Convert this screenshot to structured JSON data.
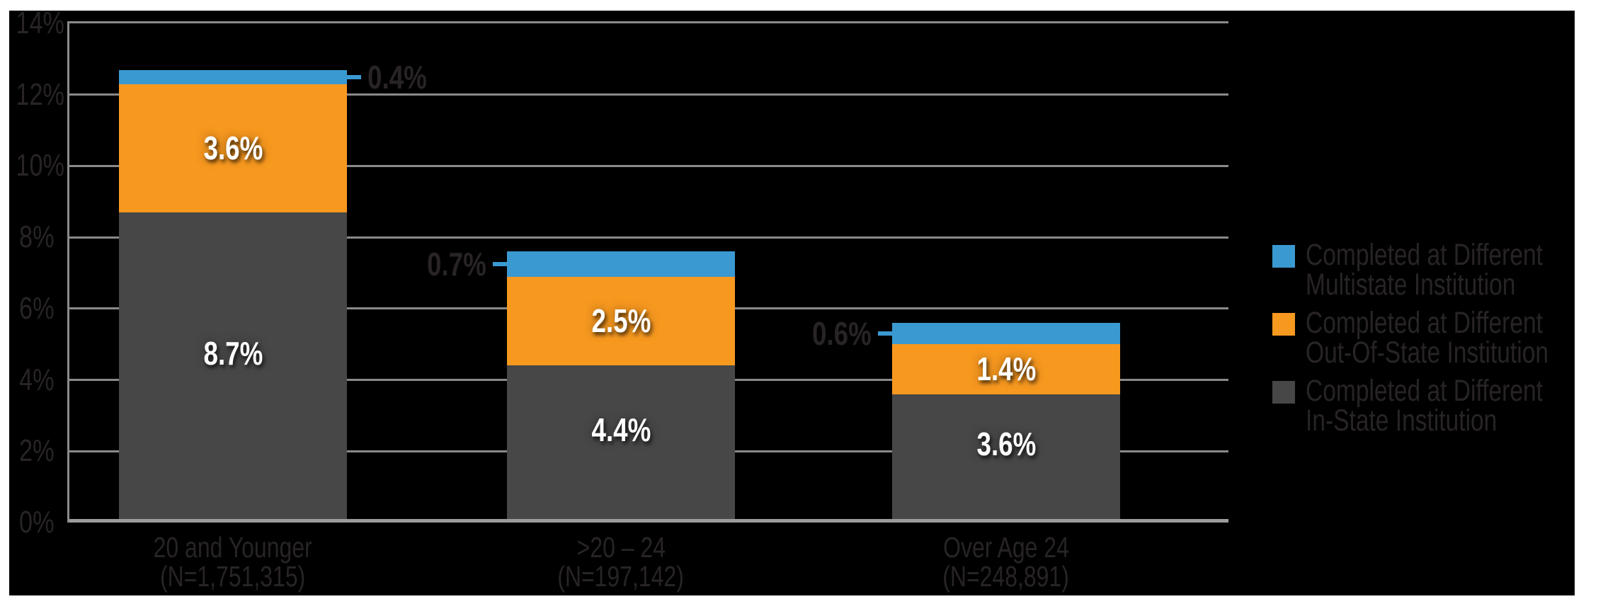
{
  "chart_data": {
    "type": "bar",
    "variant": "stacked-column",
    "title": "",
    "categories": [
      {
        "label": "20 and Younger",
        "n_label": "(N=1,751,315)"
      },
      {
        "label": ">20 – 24",
        "n_label": "(N=197,142)"
      },
      {
        "label": "Over Age 24",
        "n_label": "(N=248,891)"
      }
    ],
    "series": [
      {
        "name": "Completed at Different In-State Institution",
        "color": "#474747",
        "values": [
          8.7,
          4.4,
          3.6
        ]
      },
      {
        "name": "Completed at Different Out-Of-State Institution",
        "color": "#f7981f",
        "values": [
          3.6,
          2.5,
          1.4
        ]
      },
      {
        "name": "Completed at Different Multistate Institution",
        "color": "#3a99d1",
        "values": [
          0.4,
          0.7,
          0.6
        ]
      }
    ],
    "totals": [
      12.7,
      7.6,
      5.6
    ],
    "ylim": [
      0,
      14
    ],
    "yticks": [
      14,
      12,
      10,
      8,
      6,
      4,
      2,
      0
    ],
    "ytick_labels": [
      "14%",
      "12%",
      "10%",
      "8%",
      "6%",
      "4%",
      "2%",
      "0%"
    ],
    "grid": true,
    "legend_position": "right",
    "callouts": [
      {
        "text": "0.4%",
        "side": "right"
      },
      {
        "text": "0.7%",
        "side": "left"
      },
      {
        "text": "0.6%",
        "side": "left"
      }
    ]
  },
  "legend": {
    "items": [
      {
        "color": "#3a99d1",
        "line1": "Completed at Different",
        "line2": "Multistate Institution"
      },
      {
        "color": "#f7981f",
        "line1": "Completed at Different",
        "line2": "Out-Of-State Institution"
      },
      {
        "color": "#474747",
        "line1": "Completed at Different",
        "line2": "In-State Institution"
      }
    ]
  },
  "colors": {
    "background": "#000000",
    "page_margin": "#ffffff",
    "grid": "#8a8a8a",
    "baseline": "#9c9c9c",
    "dark_text": "#282425",
    "bar_value_text": "#ffffff"
  }
}
